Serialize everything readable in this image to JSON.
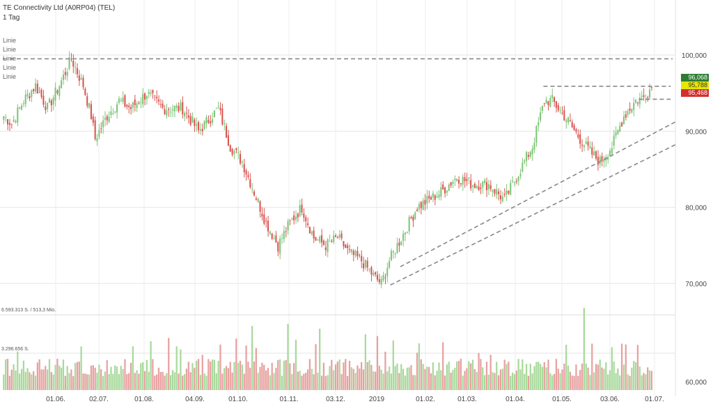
{
  "header": {
    "title": "TE Connectivity Ltd (A0RP04) (TEL)",
    "interval": "1 Tag",
    "legend": [
      "Linie",
      "Linie",
      "Linie",
      "Linie",
      "Linie"
    ]
  },
  "price_tags": [
    {
      "value": "96,068",
      "color": "#2e7d32"
    },
    {
      "value": "95,788",
      "color": "#e6e600",
      "text_color": "#333333"
    },
    {
      "value": "95,468",
      "color": "#d32f2f"
    }
  ],
  "volume": {
    "max_label": "6.593.313 S. / 513,3 Mio.",
    "mid_label": "3.296.656 S."
  },
  "chart_data": {
    "type": "candlestick",
    "y_axis": {
      "ticks": [
        "100,000",
        "90,000",
        "80,000",
        "70,000",
        "60,000"
      ],
      "range": [
        68,
        102
      ]
    },
    "x_axis": {
      "ticks": [
        "01.06.",
        "02.07.",
        "01.08.",
        "04.09.",
        "01.10.",
        "01.11.",
        "03.12.",
        "2019",
        "01.02.",
        "01.03.",
        "01.04.",
        "01.05.",
        "03.06.",
        "01.07."
      ]
    },
    "colors": {
      "up": "#7cc576",
      "down": "#d9534f",
      "vol_up": "#a8d99b",
      "vol_down": "#e8a0a0"
    },
    "anchors": [
      [
        0,
        92
      ],
      [
        4,
        91
      ],
      [
        10,
        94
      ],
      [
        16,
        96
      ],
      [
        22,
        93
      ],
      [
        28,
        96
      ],
      [
        34,
        99.5
      ],
      [
        40,
        96
      ],
      [
        44,
        92
      ],
      [
        46,
        89
      ],
      [
        52,
        92
      ],
      [
        58,
        94
      ],
      [
        64,
        93
      ],
      [
        72,
        95
      ],
      [
        80,
        93
      ],
      [
        90,
        93
      ],
      [
        98,
        90
      ],
      [
        108,
        93
      ],
      [
        114,
        88
      ],
      [
        120,
        86
      ],
      [
        126,
        82
      ],
      [
        132,
        78
      ],
      [
        138,
        75
      ],
      [
        144,
        78
      ],
      [
        150,
        80
      ],
      [
        156,
        76
      ],
      [
        162,
        75
      ],
      [
        168,
        76
      ],
      [
        174,
        74
      ],
      [
        180,
        73
      ],
      [
        186,
        71
      ],
      [
        190,
        70
      ],
      [
        194,
        73
      ],
      [
        200,
        76
      ],
      [
        208,
        80
      ],
      [
        214,
        81
      ],
      [
        220,
        82
      ],
      [
        228,
        84
      ],
      [
        236,
        83
      ],
      [
        244,
        83
      ],
      [
        252,
        81
      ],
      [
        258,
        84
      ],
      [
        266,
        88
      ],
      [
        272,
        94
      ],
      [
        276,
        94
      ],
      [
        282,
        92
      ],
      [
        290,
        89
      ],
      [
        296,
        87
      ],
      [
        300,
        86
      ],
      [
        306,
        88
      ],
      [
        312,
        92
      ],
      [
        318,
        94
      ],
      [
        322,
        94.5
      ],
      [
        326,
        95.8
      ]
    ],
    "trendlines": [
      {
        "points": [
          [
            0,
            99.5
          ],
          [
            337,
            99.5
          ]
        ]
      },
      {
        "points": [
          [
            272,
            95.9
          ],
          [
            336,
            95.9
          ]
        ]
      },
      {
        "points": [
          [
            320,
            94.2
          ],
          [
            336,
            94.2
          ]
        ]
      },
      {
        "points": [
          [
            195,
            69.8
          ],
          [
            339,
            88.3
          ]
        ]
      },
      {
        "points": [
          [
            200,
            72.2
          ],
          [
            339,
            91.3
          ]
        ]
      }
    ]
  }
}
